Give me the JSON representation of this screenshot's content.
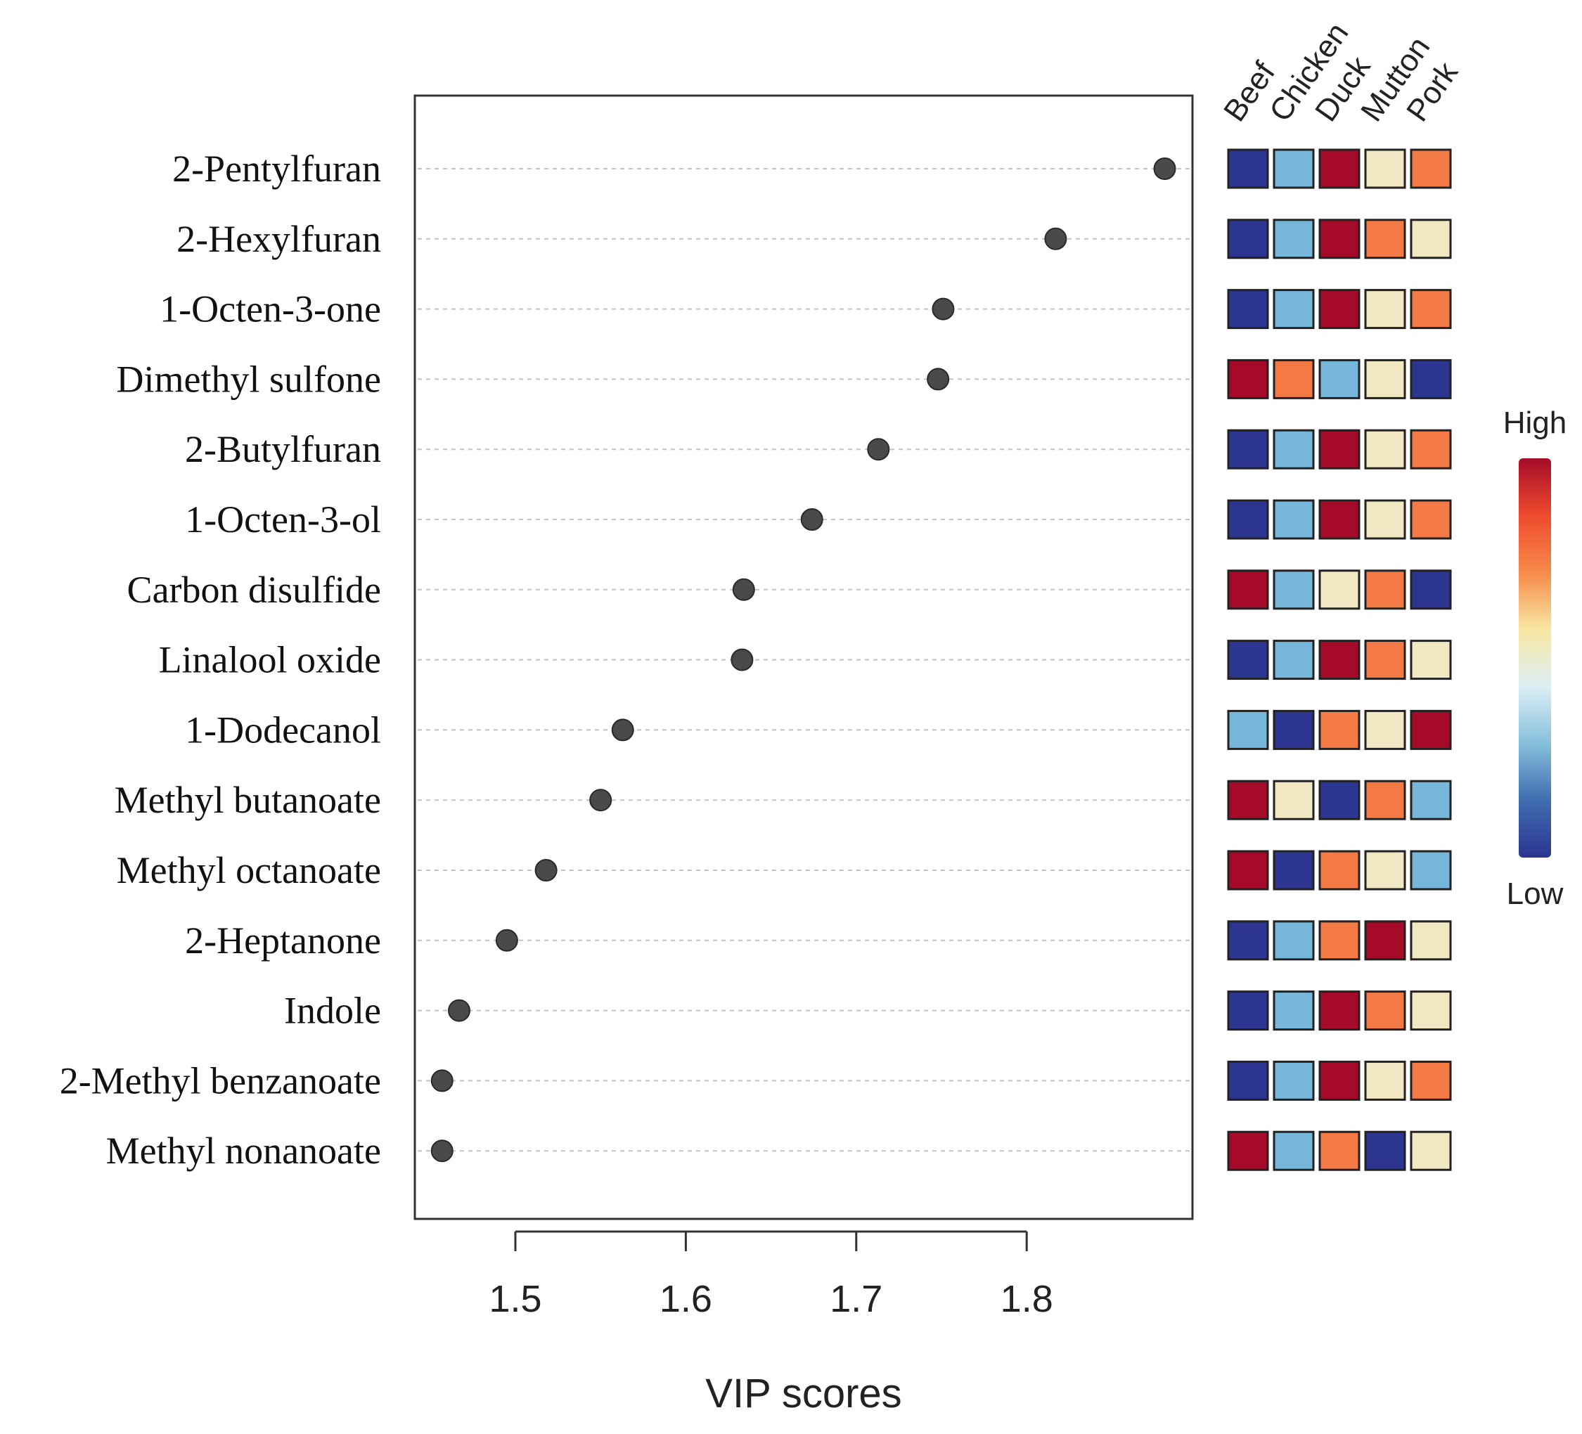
{
  "chart_data": {
    "type": "scatter",
    "title": "",
    "xlabel": "VIP scores",
    "ylabel": "",
    "xlim": [
      1.44,
      1.9
    ],
    "x_ticks": [
      "1.5",
      "1.6",
      "1.7",
      "1.8"
    ],
    "compounds": [
      {
        "name": "2-Pentylfuran",
        "vip": 1.881,
        "levels": [
          "low",
          "mid-low",
          "high",
          "mid",
          "mid-high"
        ]
      },
      {
        "name": "2-Hexylfuran",
        "vip": 1.817,
        "levels": [
          "low",
          "mid-low",
          "high",
          "mid-high",
          "mid"
        ]
      },
      {
        "name": "1-Octen-3-one",
        "vip": 1.751,
        "levels": [
          "low",
          "mid-low",
          "high",
          "mid",
          "mid-high"
        ]
      },
      {
        "name": "Dimethyl sulfone",
        "vip": 1.748,
        "levels": [
          "high",
          "mid-high",
          "mid-low",
          "mid",
          "low"
        ]
      },
      {
        "name": "2-Butylfuran",
        "vip": 1.713,
        "levels": [
          "low",
          "mid-low",
          "high",
          "mid",
          "mid-high"
        ]
      },
      {
        "name": "1-Octen-3-ol",
        "vip": 1.674,
        "levels": [
          "low",
          "mid-low",
          "high",
          "mid",
          "mid-high"
        ]
      },
      {
        "name": "Carbon disulfide",
        "vip": 1.634,
        "levels": [
          "high",
          "mid-low",
          "mid",
          "mid-high",
          "low"
        ]
      },
      {
        "name": "Linalool oxide",
        "vip": 1.633,
        "levels": [
          "low",
          "mid-low",
          "high",
          "mid-high",
          "mid"
        ]
      },
      {
        "name": "1-Dodecanol",
        "vip": 1.563,
        "levels": [
          "mid-low",
          "low",
          "mid-high",
          "mid",
          "high"
        ]
      },
      {
        "name": "Methyl butanoate",
        "vip": 1.55,
        "levels": [
          "high",
          "mid",
          "low",
          "mid-high",
          "mid-low"
        ]
      },
      {
        "name": "Methyl octanoate",
        "vip": 1.518,
        "levels": [
          "high",
          "low",
          "mid-high",
          "mid",
          "mid-low"
        ]
      },
      {
        "name": "2-Heptanone",
        "vip": 1.495,
        "levels": [
          "low",
          "mid-low",
          "mid-high",
          "high",
          "mid"
        ]
      },
      {
        "name": "Indole",
        "vip": 1.467,
        "levels": [
          "low",
          "mid-low",
          "high",
          "mid-high",
          "mid"
        ]
      },
      {
        "name": "2-Methyl benzanoate",
        "vip": 1.457,
        "levels": [
          "low",
          "mid-low",
          "high",
          "mid",
          "mid-high"
        ]
      },
      {
        "name": "Methyl nonanoate",
        "vip": 1.457,
        "levels": [
          "high",
          "mid-low",
          "mid-high",
          "low",
          "mid"
        ]
      }
    ],
    "heatmap_groups": [
      "Beef",
      "Chicken",
      "Duck",
      "Mutton",
      "Pork"
    ],
    "legend": {
      "high_label": "High",
      "low_label": "Low"
    },
    "level_colors": {
      "low": "#2c3590",
      "mid-low": "#77b6db",
      "mid": "#f1e7c3",
      "mid-high": "#f47a45",
      "high": "#a50b29"
    },
    "gradient_stops": [
      "#a50b29",
      "#ef4b2e",
      "#f68a4a",
      "#f8e7a3",
      "#dceff5",
      "#86c0dd",
      "#3f6db0",
      "#2c3590"
    ],
    "point_color": "#4a4a48"
  }
}
